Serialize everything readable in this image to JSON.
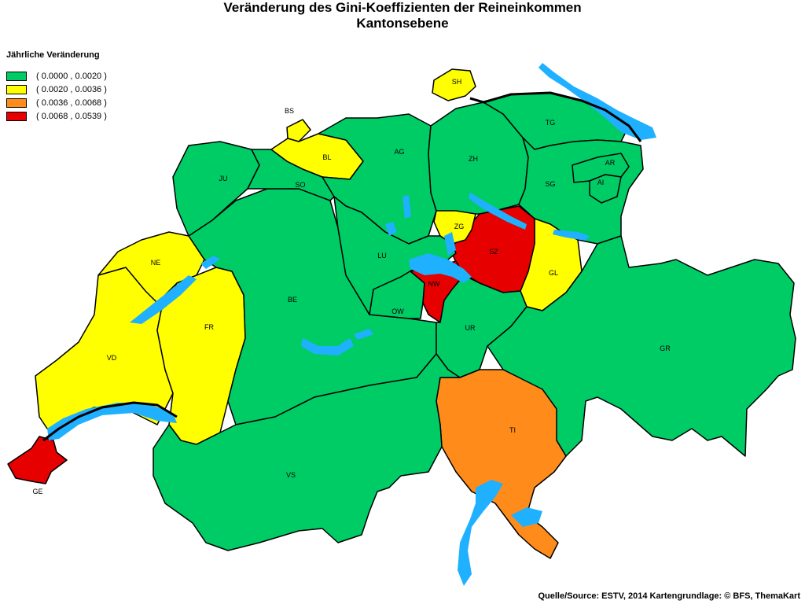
{
  "title": {
    "line1": "Veränderung des Gini-Koeffizienten der Reineinkommen",
    "line2": "Kantonsebene"
  },
  "legend": {
    "title": "Jährliche Veränderung",
    "classes": [
      {
        "key": "c1",
        "label": "( 0.0000 , 0.0020 )",
        "color": "#00cc66"
      },
      {
        "key": "c2",
        "label": "( 0.0020 , 0.0036 )",
        "color": "#ffff00"
      },
      {
        "key": "c3",
        "label": "( 0.0036 , 0.0068 )",
        "color": "#ff8c1a"
      },
      {
        "key": "c4",
        "label": "( 0.0068 , 0.0539 )",
        "color": "#e60000"
      }
    ]
  },
  "cantons": [
    {
      "code": "GE",
      "class": "c4"
    },
    {
      "code": "VD",
      "class": "c2"
    },
    {
      "code": "NE",
      "class": "c2"
    },
    {
      "code": "FR",
      "class": "c2"
    },
    {
      "code": "BE",
      "class": "c1"
    },
    {
      "code": "JU",
      "class": "c1"
    },
    {
      "code": "SO",
      "class": "c1"
    },
    {
      "code": "BS",
      "class": "c2"
    },
    {
      "code": "BL",
      "class": "c2"
    },
    {
      "code": "AG",
      "class": "c1"
    },
    {
      "code": "ZH",
      "class": "c1"
    },
    {
      "code": "SH",
      "class": "c2"
    },
    {
      "code": "TG",
      "class": "c1"
    },
    {
      "code": "SG",
      "class": "c1"
    },
    {
      "code": "AR",
      "class": "c1"
    },
    {
      "code": "AI",
      "class": "c1"
    },
    {
      "code": "GL",
      "class": "c2"
    },
    {
      "code": "SZ",
      "class": "c4"
    },
    {
      "code": "ZG",
      "class": "c2"
    },
    {
      "code": "LU",
      "class": "c1"
    },
    {
      "code": "OW",
      "class": "c1"
    },
    {
      "code": "NW",
      "class": "c4"
    },
    {
      "code": "UR",
      "class": "c1"
    },
    {
      "code": "GR",
      "class": "c1"
    },
    {
      "code": "TI",
      "class": "c3"
    },
    {
      "code": "VS",
      "class": "c1"
    }
  ],
  "source": "Quelle/Source: ESTV, 2014 Kartengrundlage: © BFS, ThemaKart"
}
